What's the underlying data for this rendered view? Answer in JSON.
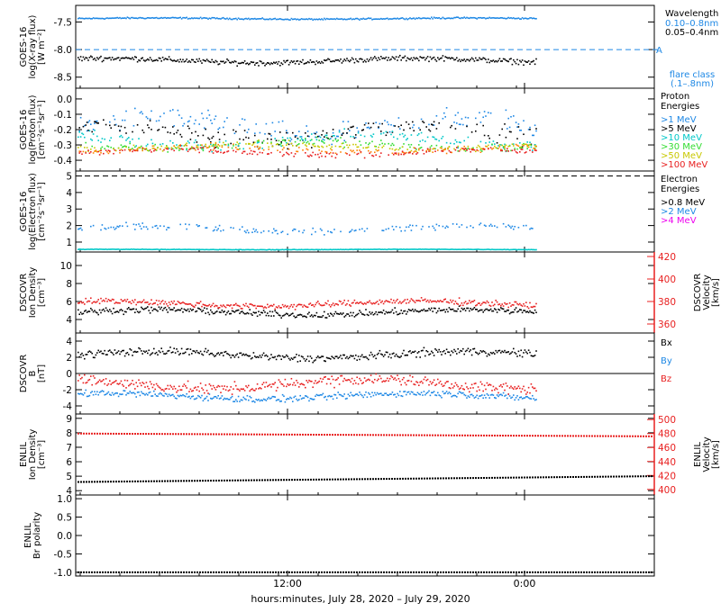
{
  "colors": {
    "black": "#000000",
    "blue": "#1e88e5",
    "light_blue": "#00bfff",
    "cyan": "#00c8c8",
    "green": "#33dd33",
    "yellow": "#c8c800",
    "orange": "#ff8000",
    "red": "#e82020",
    "magenta": "#ee00ee"
  },
  "x_axis": {
    "label": "hours:minutes, July 28, 2020 – July 29, 2020",
    "ticks": [
      "12:00",
      "0:00"
    ]
  },
  "chart_data": [
    {
      "id": "xray",
      "type": "scatter",
      "ylabel": [
        "GOES-16",
        "log(X-ray flux)",
        "[W m⁻²]"
      ],
      "yticks": [
        "-7.5",
        "-8.0",
        "-8.5"
      ],
      "ylim": [
        -8.7,
        -7.2
      ],
      "threshold": {
        "value": -8.0,
        "label": "A"
      },
      "legend": {
        "title": "Wavelength",
        "entries": [
          {
            "label": "0.10–0.8nm",
            "color": "blue"
          },
          {
            "label": "0.05–0.4nm",
            "color": "black"
          }
        ],
        "note": [
          "flare class",
          "(.1–.8nm)"
        ]
      },
      "series": [
        {
          "color": "blue",
          "level": -7.44,
          "noise": 0.02
        },
        {
          "color": "black",
          "level": -8.2,
          "noise": 0.07
        }
      ]
    },
    {
      "id": "proton",
      "type": "scatter",
      "ylabel": [
        "GOES-16",
        "log(Proton flux)",
        "[cm⁻²s⁻¹sr⁻¹]"
      ],
      "yticks": [
        "0.0",
        "-0.1",
        "-0.2",
        "-0.3",
        "-0.4"
      ],
      "ylim": [
        -0.47,
        0.07
      ],
      "legend": {
        "title": "Proton",
        "title2": "Energies",
        "entries": [
          {
            "label": ">1 MeV",
            "color": "blue"
          },
          {
            "label": ">5 MeV",
            "color": "black"
          },
          {
            "label": ">10 MeV",
            "color": "cyan"
          },
          {
            "label": ">30 MeV",
            "color": "green"
          },
          {
            "label": ">50 MeV",
            "color": "yellow"
          },
          {
            "label": ">100 MeV",
            "color": "red"
          }
        ]
      },
      "series": [
        {
          "color": "blue",
          "level": -0.18,
          "noise": 0.1
        },
        {
          "color": "black",
          "level": -0.22,
          "noise": 0.08
        },
        {
          "color": "cyan",
          "level": -0.27,
          "noise": 0.06
        },
        {
          "color": "green",
          "level": -0.3,
          "noise": 0.04
        },
        {
          "color": "yellow",
          "level": -0.31,
          "noise": 0.03
        },
        {
          "color": "orange",
          "level": -0.33,
          "noise": 0.03
        },
        {
          "color": "red",
          "level": -0.35,
          "noise": 0.03
        }
      ]
    },
    {
      "id": "electron",
      "type": "scatter",
      "ylabel": [
        "GOES-16",
        "log(Electron flux)",
        "[cm⁻²s⁻¹sr⁻¹]"
      ],
      "yticks": [
        "5",
        "4",
        "3",
        "2",
        "1"
      ],
      "ylim": [
        0.4,
        5.3
      ],
      "threshold": {
        "value": 5.0,
        "label": ""
      },
      "legend": {
        "title": "Electron",
        "title2": "Energies",
        "entries": [
          {
            "label": ">0.8 MeV",
            "color": "black"
          },
          {
            "label": ">2 MeV",
            "color": "blue"
          },
          {
            "label": ">4 MeV",
            "color": "magenta"
          }
        ]
      },
      "series": [
        {
          "color": "blue",
          "level": 1.8,
          "noise": 0.3
        },
        {
          "color": "cyan",
          "level": 0.55,
          "noise": 0.02
        }
      ]
    },
    {
      "id": "dscovr_plasma",
      "type": "scatter",
      "ylabel": [
        "DSCOVR",
        "Ion Density",
        "[cm⁻³]"
      ],
      "yticks": [
        "10",
        "8",
        "6",
        "4"
      ],
      "ylim": [
        2.5,
        11.5
      ],
      "y2label": [
        "DSCOVR",
        "Velocity",
        "[km/s]"
      ],
      "y2ticks": [
        "420",
        "400",
        "380",
        "360"
      ],
      "y2lim": [
        352,
        424
      ],
      "series": [
        {
          "color": "black",
          "level": 4.8,
          "noise": 0.5,
          "axis": "left"
        },
        {
          "color": "red",
          "level": 378,
          "noise": 4,
          "axis": "right"
        }
      ]
    },
    {
      "id": "dscovr_mag",
      "type": "scatter",
      "ylabel": [
        "DSCOVR",
        "B",
        "[nT]"
      ],
      "yticks": [
        "4",
        "2",
        "0",
        "-2",
        "-4"
      ],
      "ylim": [
        -5,
        5
      ],
      "legend": {
        "entries": [
          {
            "label": "Bx",
            "color": "black"
          },
          {
            "label": "By",
            "color": "blue"
          },
          {
            "label": "Bz",
            "color": "red"
          }
        ]
      },
      "series": [
        {
          "color": "black",
          "level": 2.3,
          "noise": 0.7
        },
        {
          "color": "blue",
          "level": -2.8,
          "noise": 0.6
        },
        {
          "color": "red",
          "level": -1.3,
          "noise": 1.0
        }
      ]
    },
    {
      "id": "enlil_plasma",
      "type": "line",
      "ylabel": [
        "ENLIL",
        "Ion Density",
        "[cm⁻³]"
      ],
      "yticks": [
        "9",
        "8",
        "7",
        "6",
        "5",
        "4"
      ],
      "ylim": [
        3.7,
        9.3
      ],
      "y2label": [
        "ENLIL",
        "Velocity",
        "[km/s]"
      ],
      "y2ticks": [
        "500",
        "480",
        "460",
        "440",
        "420",
        "400"
      ],
      "y2lim": [
        392,
        508
      ],
      "series": [
        {
          "color": "red",
          "start": 480,
          "end": 476,
          "axis": "right"
        },
        {
          "color": "black",
          "start": 4.6,
          "end": 5.0,
          "axis": "left"
        }
      ]
    },
    {
      "id": "enlil_polarity",
      "type": "line",
      "ylabel": [
        "ENLIL",
        "Br polarity"
      ],
      "yticks": [
        "1.0",
        "0.5",
        "0.0",
        "-0.5",
        "-1.0"
      ],
      "ylim": [
        -1.1,
        1.1
      ],
      "series": [
        {
          "color": "black",
          "start": -1.0,
          "end": -1.0,
          "axis": "left"
        }
      ]
    }
  ]
}
